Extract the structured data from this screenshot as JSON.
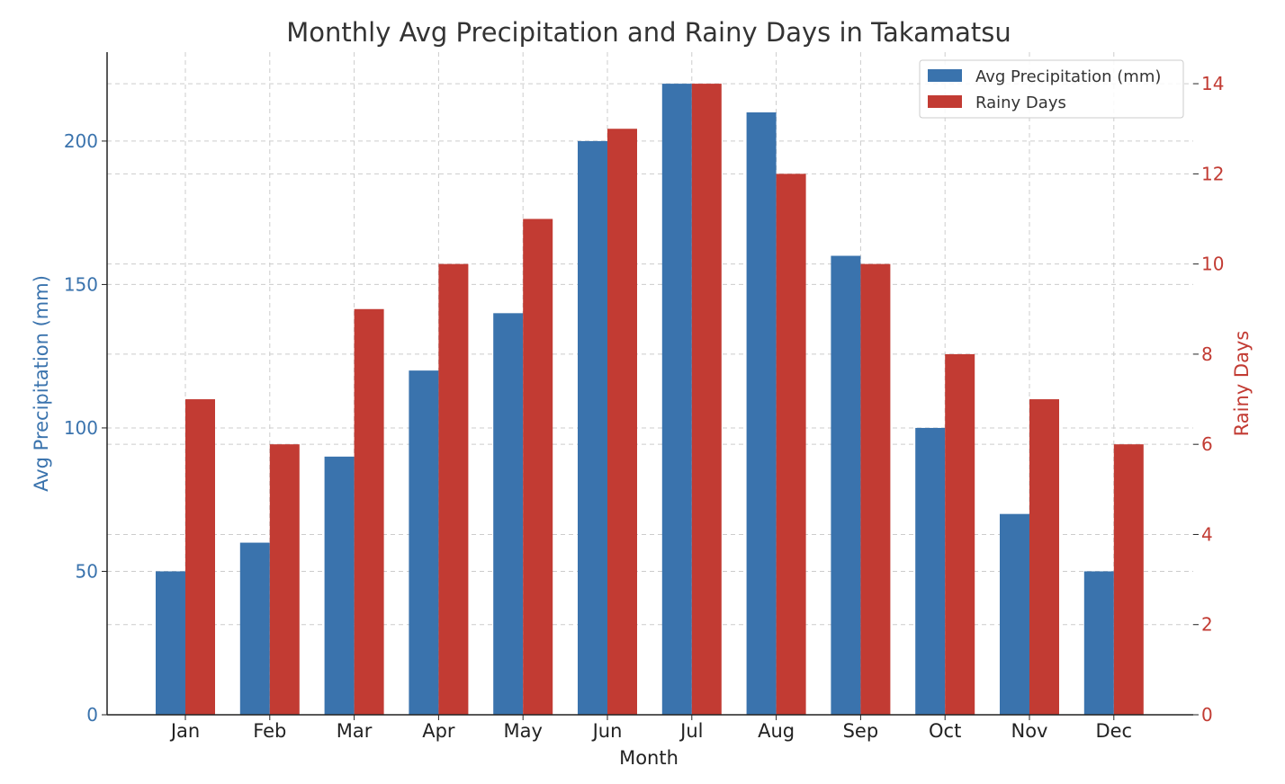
{
  "chart_data": {
    "type": "bar",
    "title": "Monthly Avg Precipitation and Rainy Days in Takamatsu",
    "xlabel": "Month",
    "categories": [
      "Jan",
      "Feb",
      "Mar",
      "Apr",
      "May",
      "Jun",
      "Jul",
      "Aug",
      "Sep",
      "Oct",
      "Nov",
      "Dec"
    ],
    "series": [
      {
        "name": "Avg Precipitation (mm)",
        "axis": "left",
        "color": "#3a73ad",
        "values": [
          50,
          60,
          90,
          120,
          140,
          200,
          220,
          210,
          160,
          100,
          70,
          50
        ]
      },
      {
        "name": "Rainy Days",
        "axis": "right",
        "color": "#c23b33",
        "values": [
          7,
          6,
          9,
          10,
          11,
          13,
          14,
          12,
          10,
          8,
          7,
          6
        ]
      }
    ],
    "y_left": {
      "label": "Avg Precipitation (mm)",
      "lim": [
        0,
        231
      ],
      "ticks": [
        0,
        50,
        100,
        150,
        200
      ],
      "color": "#3a73ad"
    },
    "y_right": {
      "label": "Rainy Days",
      "lim": [
        0,
        14.7
      ],
      "ticks": [
        0,
        2,
        4,
        6,
        8,
        10,
        12,
        14
      ],
      "color": "#c23b33"
    },
    "grid": true,
    "legend_position": "top-right"
  }
}
